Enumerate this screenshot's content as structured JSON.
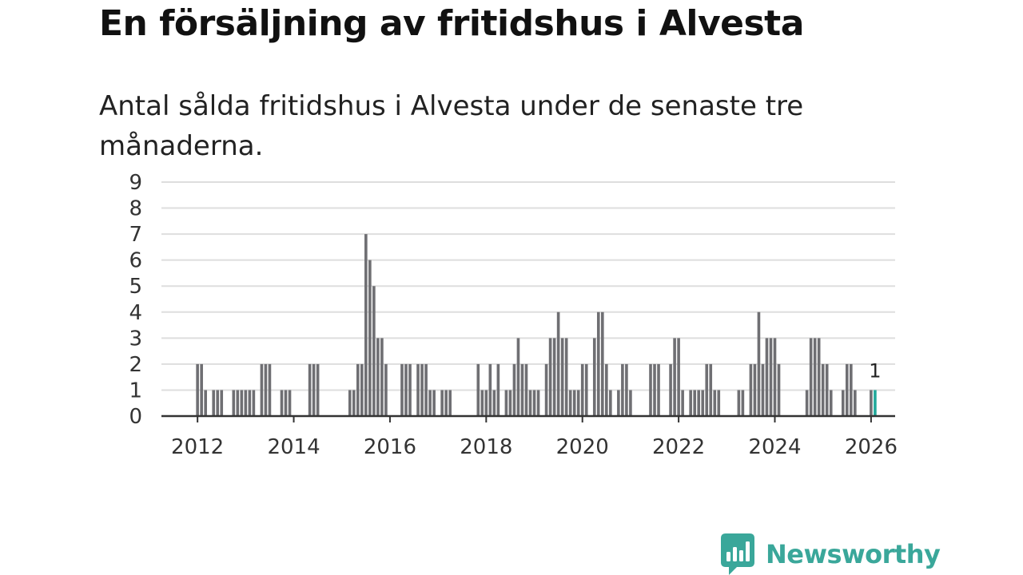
{
  "header": {
    "title": "En försäljning av fritidshus i Alvesta",
    "subtitle": "Antal sålda fritidshus i Alvesta under de senaste tre månaderna."
  },
  "brand": {
    "name": "Newsworthy",
    "icon": "newsworthy-logo-icon",
    "color": "#3aa79a"
  },
  "chart_data": {
    "type": "bar",
    "title": "",
    "xlabel": "",
    "ylabel": "",
    "ylim": [
      0,
      9
    ],
    "yticks": [
      0,
      1,
      2,
      3,
      4,
      5,
      6,
      7,
      8,
      9
    ],
    "xticks": [
      "2012",
      "2014",
      "2016",
      "2018",
      "2020",
      "2022",
      "2024",
      "2026"
    ],
    "xlim": [
      "2011-04",
      "2026-07"
    ],
    "grid": true,
    "bar_color": "#6f6f73",
    "highlight_color": "#21a89a",
    "highlight_label": "1",
    "points": [
      {
        "x": "2012-01",
        "y": 2
      },
      {
        "x": "2012-02",
        "y": 2
      },
      {
        "x": "2012-03",
        "y": 1
      },
      {
        "x": "2012-05",
        "y": 1
      },
      {
        "x": "2012-06",
        "y": 1
      },
      {
        "x": "2012-07",
        "y": 1
      },
      {
        "x": "2012-10",
        "y": 1
      },
      {
        "x": "2012-11",
        "y": 1
      },
      {
        "x": "2012-12",
        "y": 1
      },
      {
        "x": "2013-01",
        "y": 1
      },
      {
        "x": "2013-02",
        "y": 1
      },
      {
        "x": "2013-03",
        "y": 1
      },
      {
        "x": "2013-05",
        "y": 2
      },
      {
        "x": "2013-06",
        "y": 2
      },
      {
        "x": "2013-07",
        "y": 2
      },
      {
        "x": "2013-10",
        "y": 1
      },
      {
        "x": "2013-11",
        "y": 1
      },
      {
        "x": "2013-12",
        "y": 1
      },
      {
        "x": "2014-05",
        "y": 2
      },
      {
        "x": "2014-06",
        "y": 2
      },
      {
        "x": "2014-07",
        "y": 2
      },
      {
        "x": "2015-03",
        "y": 1
      },
      {
        "x": "2015-04",
        "y": 1
      },
      {
        "x": "2015-05",
        "y": 2
      },
      {
        "x": "2015-06",
        "y": 2
      },
      {
        "x": "2015-07",
        "y": 7
      },
      {
        "x": "2015-08",
        "y": 6
      },
      {
        "x": "2015-09",
        "y": 5
      },
      {
        "x": "2015-10",
        "y": 3
      },
      {
        "x": "2015-11",
        "y": 3
      },
      {
        "x": "2015-12",
        "y": 2
      },
      {
        "x": "2016-04",
        "y": 2
      },
      {
        "x": "2016-05",
        "y": 2
      },
      {
        "x": "2016-06",
        "y": 2
      },
      {
        "x": "2016-08",
        "y": 2
      },
      {
        "x": "2016-09",
        "y": 2
      },
      {
        "x": "2016-10",
        "y": 2
      },
      {
        "x": "2016-11",
        "y": 1
      },
      {
        "x": "2016-12",
        "y": 1
      },
      {
        "x": "2017-02",
        "y": 1
      },
      {
        "x": "2017-03",
        "y": 1
      },
      {
        "x": "2017-04",
        "y": 1
      },
      {
        "x": "2017-11",
        "y": 2
      },
      {
        "x": "2017-12",
        "y": 1
      },
      {
        "x": "2018-01",
        "y": 1
      },
      {
        "x": "2018-02",
        "y": 2
      },
      {
        "x": "2018-03",
        "y": 1
      },
      {
        "x": "2018-04",
        "y": 2
      },
      {
        "x": "2018-06",
        "y": 1
      },
      {
        "x": "2018-07",
        "y": 1
      },
      {
        "x": "2018-08",
        "y": 2
      },
      {
        "x": "2018-09",
        "y": 3
      },
      {
        "x": "2018-10",
        "y": 2
      },
      {
        "x": "2018-11",
        "y": 2
      },
      {
        "x": "2018-12",
        "y": 1
      },
      {
        "x": "2019-01",
        "y": 1
      },
      {
        "x": "2019-02",
        "y": 1
      },
      {
        "x": "2019-04",
        "y": 2
      },
      {
        "x": "2019-05",
        "y": 3
      },
      {
        "x": "2019-06",
        "y": 3
      },
      {
        "x": "2019-07",
        "y": 4
      },
      {
        "x": "2019-08",
        "y": 3
      },
      {
        "x": "2019-09",
        "y": 3
      },
      {
        "x": "2019-10",
        "y": 1
      },
      {
        "x": "2019-11",
        "y": 1
      },
      {
        "x": "2019-12",
        "y": 1
      },
      {
        "x": "2020-01",
        "y": 2
      },
      {
        "x": "2020-02",
        "y": 2
      },
      {
        "x": "2020-04",
        "y": 3
      },
      {
        "x": "2020-05",
        "y": 4
      },
      {
        "x": "2020-06",
        "y": 4
      },
      {
        "x": "2020-07",
        "y": 2
      },
      {
        "x": "2020-08",
        "y": 1
      },
      {
        "x": "2020-10",
        "y": 1
      },
      {
        "x": "2020-11",
        "y": 2
      },
      {
        "x": "2020-12",
        "y": 2
      },
      {
        "x": "2021-01",
        "y": 1
      },
      {
        "x": "2021-06",
        "y": 2
      },
      {
        "x": "2021-07",
        "y": 2
      },
      {
        "x": "2021-08",
        "y": 2
      },
      {
        "x": "2021-11",
        "y": 2
      },
      {
        "x": "2021-12",
        "y": 3
      },
      {
        "x": "2022-01",
        "y": 3
      },
      {
        "x": "2022-02",
        "y": 1
      },
      {
        "x": "2022-04",
        "y": 1
      },
      {
        "x": "2022-05",
        "y": 1
      },
      {
        "x": "2022-06",
        "y": 1
      },
      {
        "x": "2022-07",
        "y": 1
      },
      {
        "x": "2022-08",
        "y": 2
      },
      {
        "x": "2022-09",
        "y": 2
      },
      {
        "x": "2022-10",
        "y": 1
      },
      {
        "x": "2022-11",
        "y": 1
      },
      {
        "x": "2023-04",
        "y": 1
      },
      {
        "x": "2023-05",
        "y": 1
      },
      {
        "x": "2023-07",
        "y": 2
      },
      {
        "x": "2023-08",
        "y": 2
      },
      {
        "x": "2023-09",
        "y": 4
      },
      {
        "x": "2023-10",
        "y": 2
      },
      {
        "x": "2023-11",
        "y": 3
      },
      {
        "x": "2023-12",
        "y": 3
      },
      {
        "x": "2024-01",
        "y": 3
      },
      {
        "x": "2024-02",
        "y": 2
      },
      {
        "x": "2024-09",
        "y": 1
      },
      {
        "x": "2024-10",
        "y": 3
      },
      {
        "x": "2024-11",
        "y": 3
      },
      {
        "x": "2024-12",
        "y": 3
      },
      {
        "x": "2025-01",
        "y": 2
      },
      {
        "x": "2025-02",
        "y": 2
      },
      {
        "x": "2025-03",
        "y": 1
      },
      {
        "x": "2025-06",
        "y": 1
      },
      {
        "x": "2025-07",
        "y": 2
      },
      {
        "x": "2025-08",
        "y": 2
      },
      {
        "x": "2025-09",
        "y": 1
      },
      {
        "x": "2026-01",
        "y": 1
      },
      {
        "x": "2026-02",
        "y": 1,
        "highlight": true
      }
    ]
  }
}
